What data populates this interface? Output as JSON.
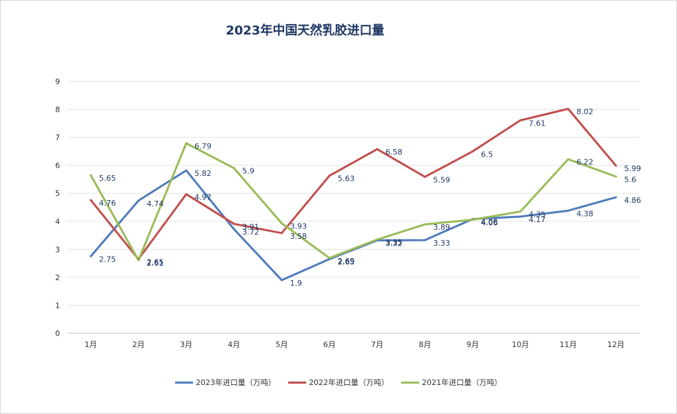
{
  "chart_data": {
    "type": "line",
    "title": "2023年中国天然乳胶进口量",
    "categories": [
      "1月",
      "2月",
      "3月",
      "4月",
      "5月",
      "6月",
      "7月",
      "8月",
      "9月",
      "10月",
      "11月",
      "12月"
    ],
    "ylim": [
      0,
      9
    ],
    "yticks": [
      0,
      1,
      2,
      3,
      4,
      5,
      6,
      7,
      8,
      9
    ],
    "grid": true,
    "legend_position": "bottom",
    "series": [
      {
        "name": "2023年进口量（万吨）",
        "color": "#4f7dba",
        "values": [
          2.75,
          4.74,
          5.82,
          3.72,
          1.9,
          2.65,
          3.32,
          3.33,
          4.08,
          4.17,
          4.38,
          4.86
        ]
      },
      {
        "name": "2022年进口量（万吨）",
        "color": "#c0504d",
        "values": [
          4.76,
          2.65,
          4.97,
          3.91,
          3.58,
          5.63,
          6.58,
          5.59,
          6.5,
          7.61,
          8.02,
          5.99
        ]
      },
      {
        "name": "2021年进口量（万吨）",
        "color": "#9bbb59",
        "values": [
          5.65,
          2.61,
          6.79,
          5.9,
          3.93,
          2.69,
          3.35,
          3.89,
          4.06,
          4.35,
          6.22,
          5.6
        ]
      }
    ]
  }
}
